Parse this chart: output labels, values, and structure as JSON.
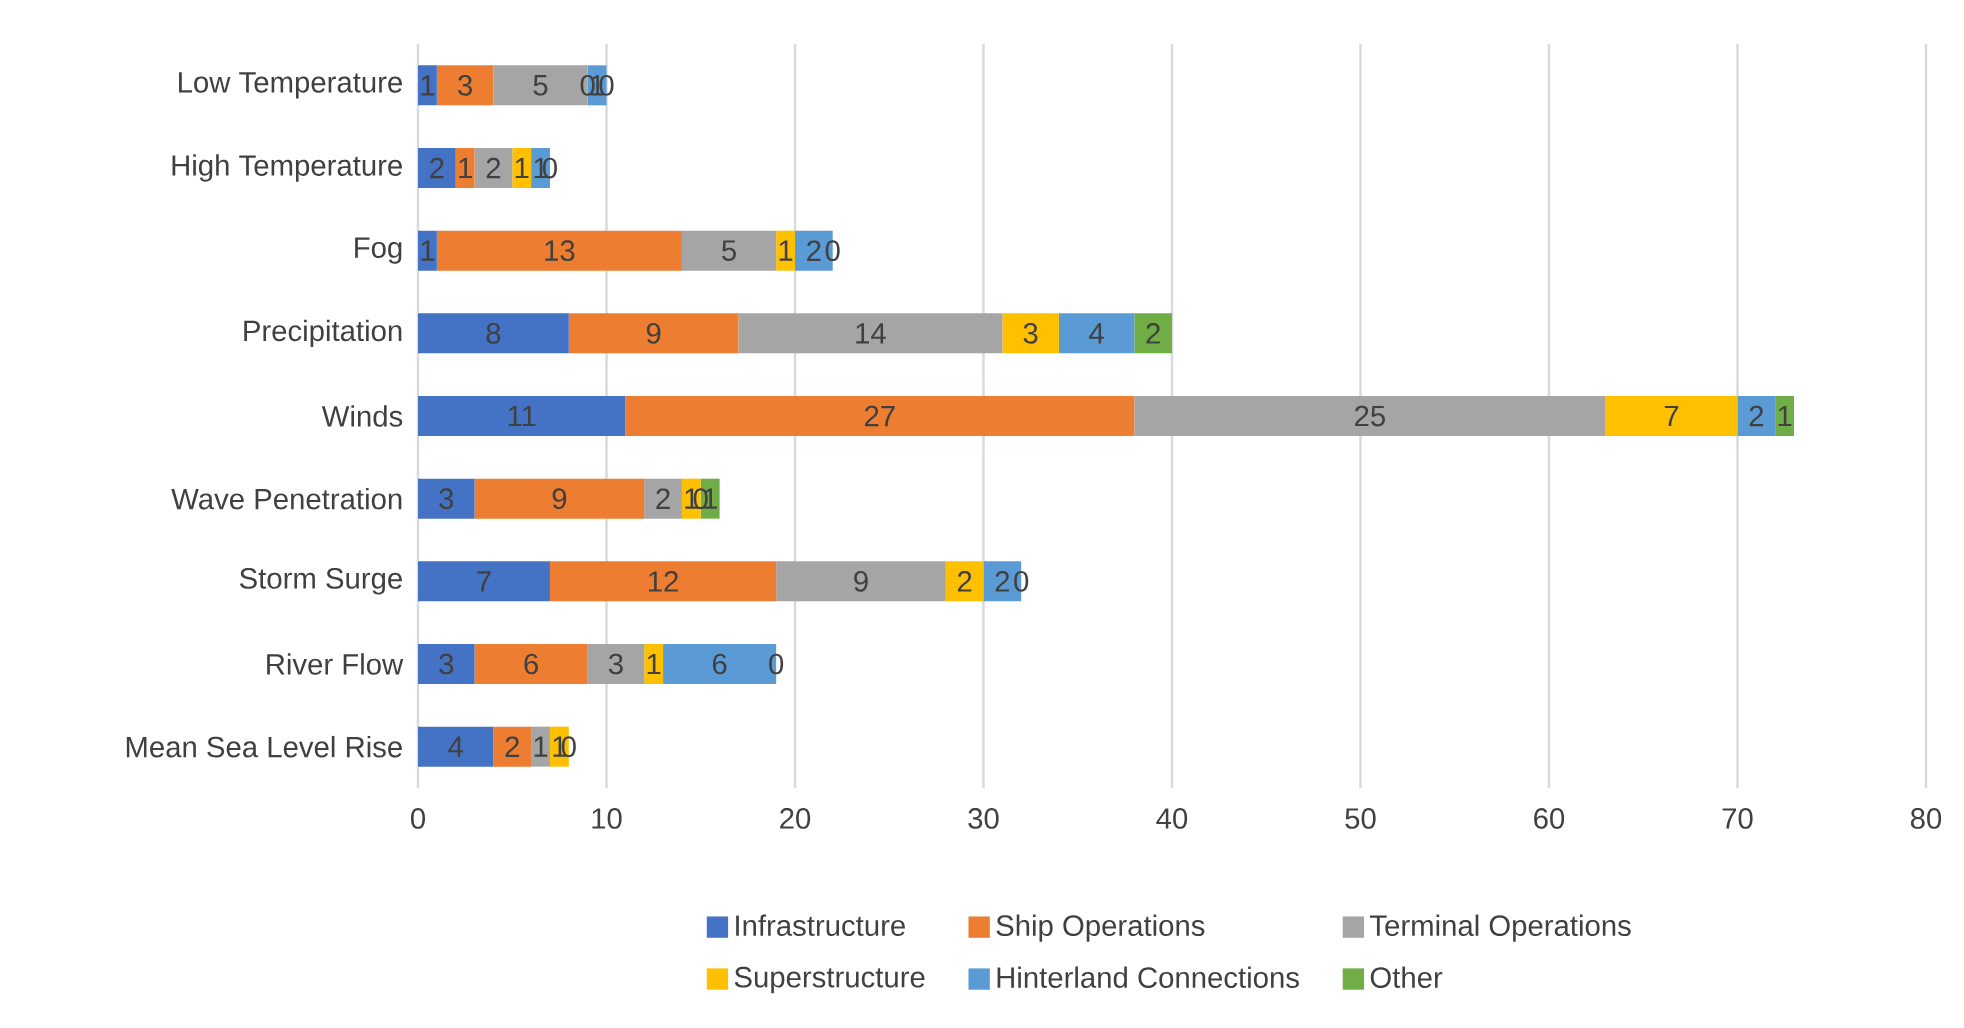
{
  "chart_data": {
    "type": "bar",
    "orientation": "horizontal",
    "stacked": true,
    "data_labels": true,
    "grid": "x",
    "legend": "bottom",
    "categories": [
      "Low Temperature",
      "High Temperature",
      "Fog",
      "Precipitation",
      "Winds",
      "Wave Penetration",
      "Storm Surge",
      "River Flow",
      "Mean Sea Level Rise"
    ],
    "xlim": [
      0,
      80
    ],
    "xticks": [
      0,
      10,
      20,
      30,
      40,
      50,
      60,
      70,
      80
    ],
    "series": [
      {
        "name": "Infrastructure",
        "color": "#4472c4",
        "values": [
          1,
          2,
          1,
          8,
          11,
          3,
          7,
          3,
          4
        ]
      },
      {
        "name": "Ship Operations",
        "color": "#ed7d31",
        "values": [
          3,
          1,
          13,
          9,
          27,
          9,
          12,
          6,
          2
        ]
      },
      {
        "name": "Terminal Operations",
        "color": "#a5a5a5",
        "values": [
          5,
          2,
          5,
          14,
          25,
          2,
          9,
          3,
          1
        ]
      },
      {
        "name": "Superstructure",
        "color": "#ffc000",
        "values": [
          0,
          1,
          1,
          3,
          7,
          1,
          2,
          1,
          1
        ]
      },
      {
        "name": "Hinterland Connections",
        "color": "#5b9bd5",
        "values": [
          1,
          1,
          2,
          4,
          2,
          0,
          2,
          6,
          0
        ]
      },
      {
        "name": "Other",
        "color": "#70ad47",
        "values": [
          0,
          0,
          0,
          2,
          1,
          1,
          0,
          0,
          null
        ]
      }
    ]
  }
}
